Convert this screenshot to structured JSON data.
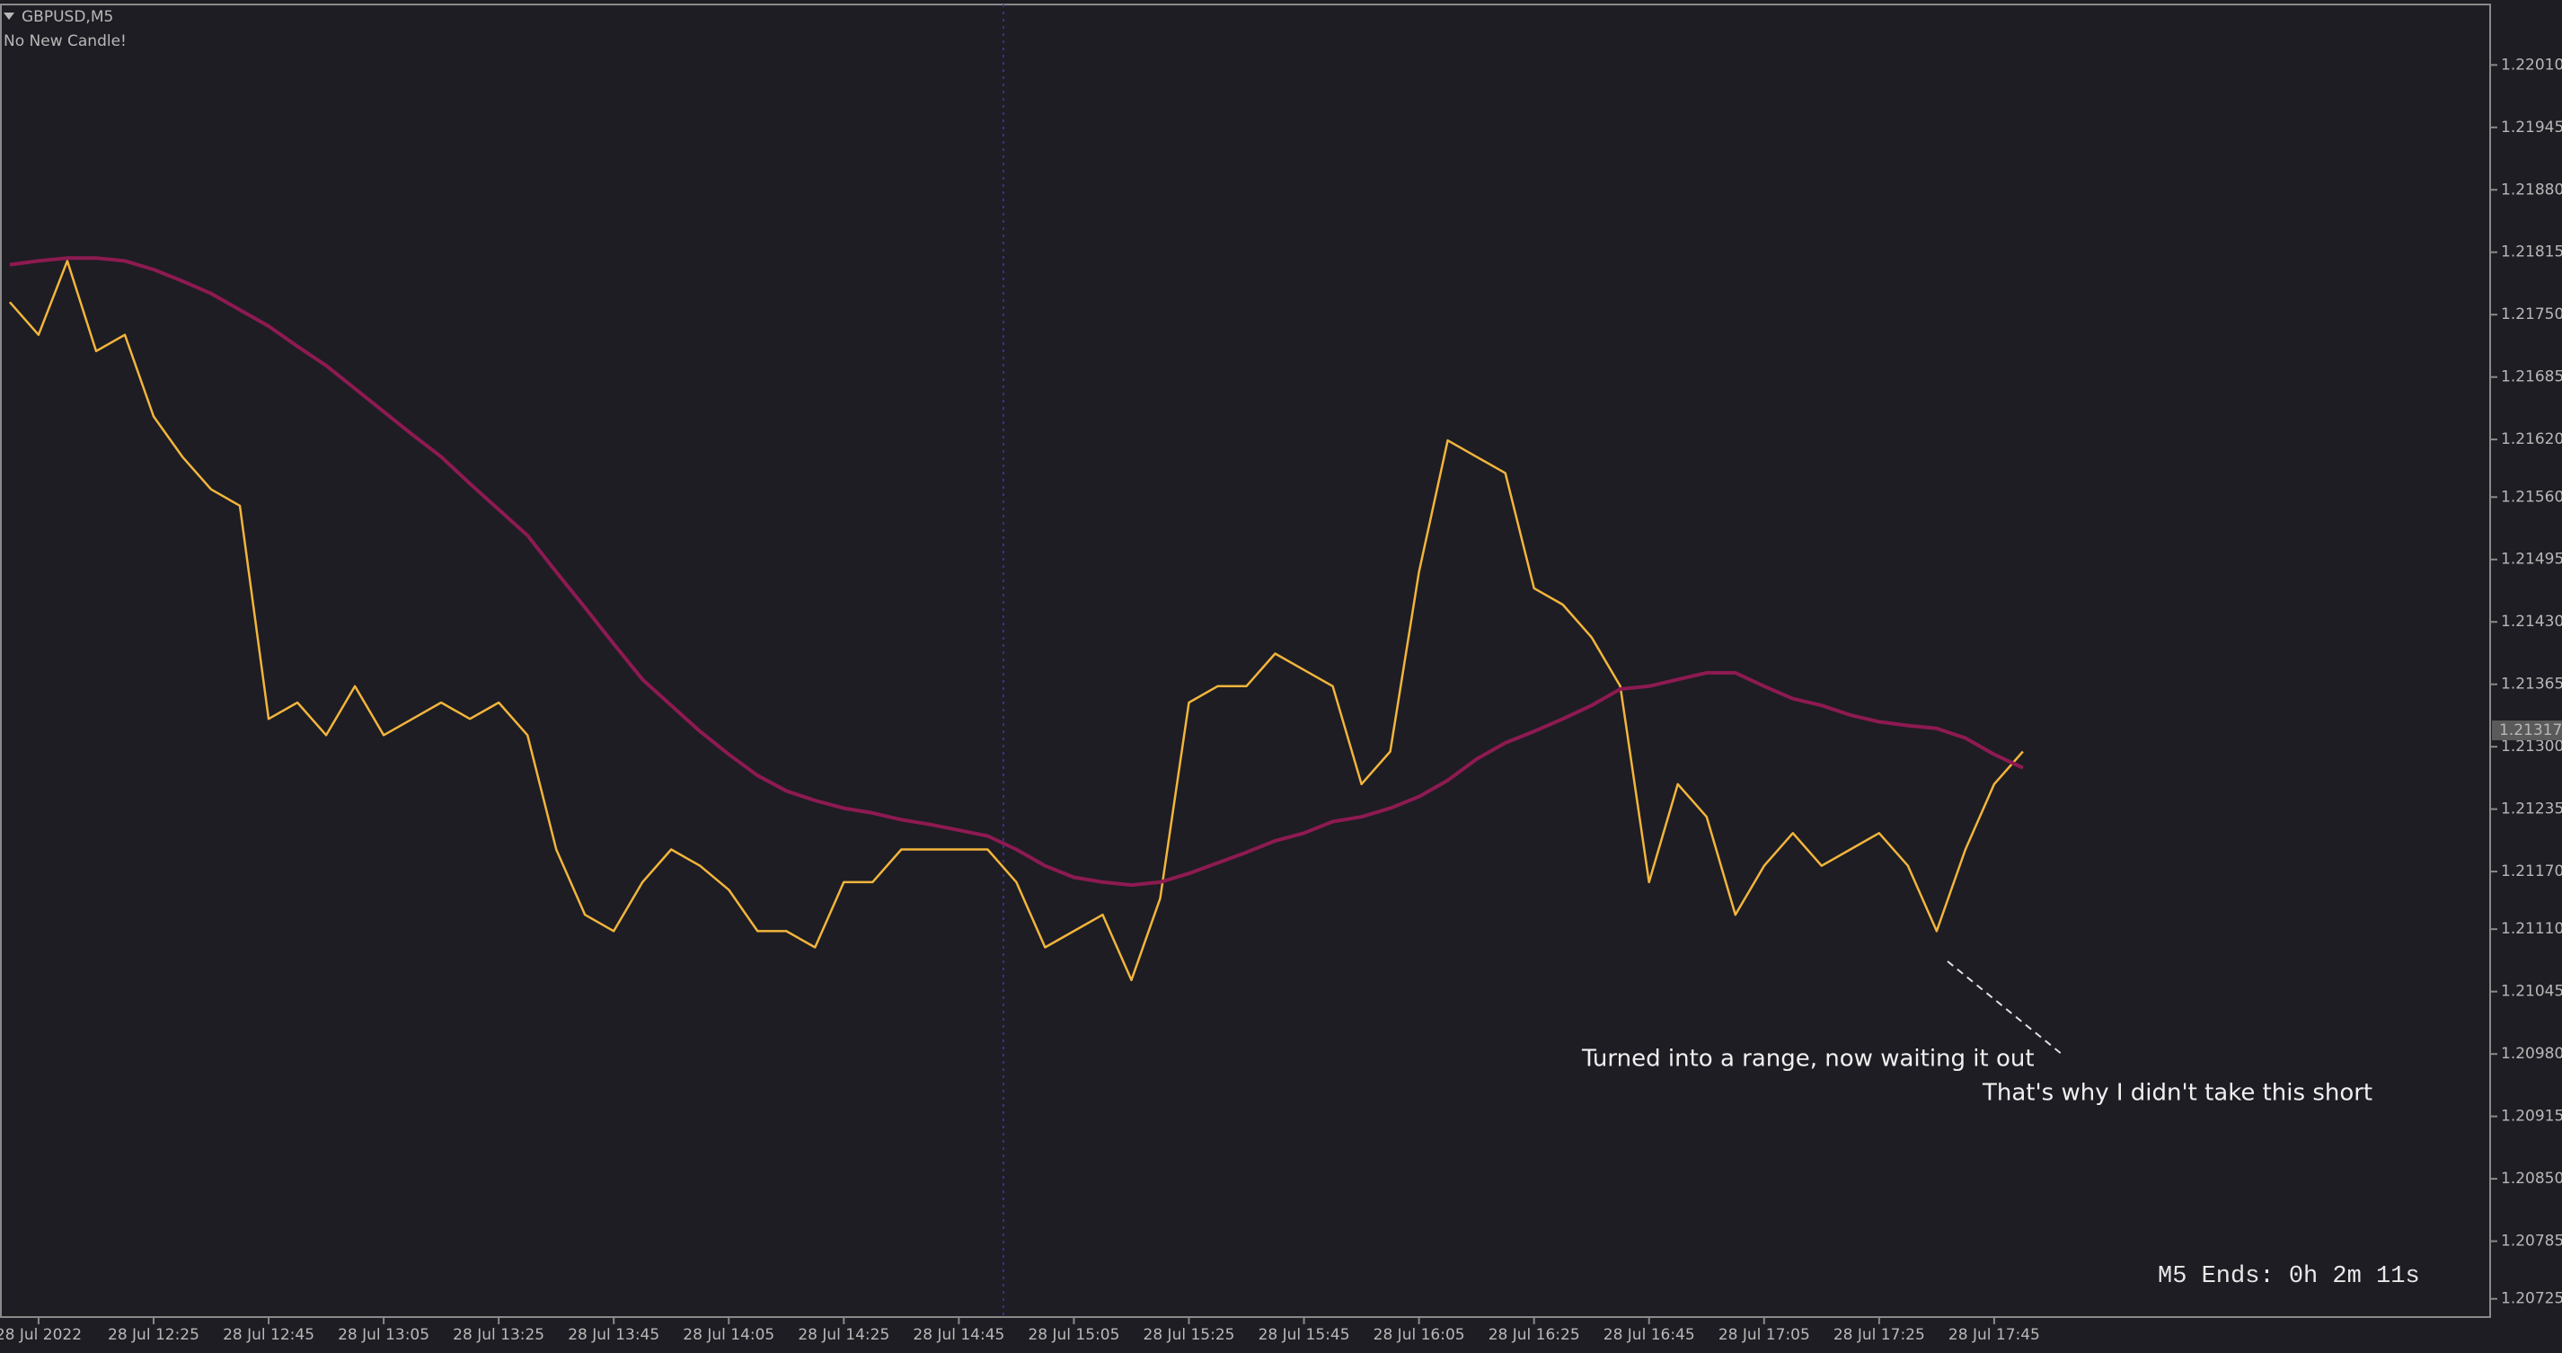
{
  "chart_data": {
    "type": "line",
    "title": "GBPUSD,M5",
    "subtitle": "No New Candle!",
    "annotations": [
      "Turned into a range, now waiting it out",
      "That's why I didn't take this short"
    ],
    "timer": "M5 Ends: 0h 2m 11s",
    "current_price": 1.21317,
    "categories": [
      null,
      "28 Jul 2022",
      null,
      null,
      null,
      "28 Jul 12:25",
      null,
      null,
      null,
      "28 Jul 12:45",
      null,
      null,
      null,
      "28 Jul 13:05",
      null,
      null,
      null,
      "28 Jul 13:25",
      null,
      null,
      null,
      "28 Jul 13:45",
      null,
      null,
      null,
      "28 Jul 14:05",
      null,
      null,
      null,
      "28 Jul 14:25",
      null,
      null,
      null,
      "28 Jul 14:45",
      null,
      null,
      null,
      "28 Jul 15:05",
      null,
      null,
      null,
      "28 Jul 15:25",
      null,
      null,
      null,
      "28 Jul 15:45",
      null,
      null,
      null,
      "28 Jul 16:05",
      null,
      null,
      null,
      "28 Jul 16:25",
      null,
      null,
      null,
      "28 Jul 16:45",
      null,
      null,
      null,
      "28 Jul 17:05",
      null,
      null,
      null,
      "28 Jul 17:25",
      null,
      null,
      null,
      "28 Jul 17:45",
      null
    ],
    "series": [
      {
        "color": "#f2b53c",
        "values": [
          1.21763,
          1.21729,
          1.21806,
          1.21712,
          1.21729,
          1.21644,
          1.21602,
          1.21568,
          1.21551,
          1.21329,
          1.21346,
          1.21312,
          1.21363,
          1.21312,
          1.21329,
          1.21346,
          1.21329,
          1.21346,
          1.21312,
          1.21193,
          1.21125,
          1.21108,
          1.21159,
          1.21193,
          1.21176,
          1.21151,
          1.21108,
          1.21108,
          1.21091,
          1.21159,
          1.21159,
          1.21193,
          1.21193,
          1.21193,
          1.21193,
          1.21159,
          1.21091,
          1.21108,
          1.21125,
          1.21057,
          1.21142,
          1.21346,
          1.21363,
          1.21363,
          1.21397,
          1.2138,
          1.21363,
          1.21261,
          1.21295,
          1.21482,
          1.21619,
          1.21602,
          1.21585,
          1.21465,
          1.21448,
          1.21414,
          1.21363,
          1.21159,
          1.21261,
          1.21227,
          1.21125,
          1.21176,
          1.2121,
          1.21176,
          1.21193,
          1.2121,
          1.21176,
          1.21108,
          1.21193,
          1.21261,
          1.21295
        ]
      },
      {
        "color": "#8e1a52",
        "values": [
          1.21802,
          1.21806,
          1.21809,
          1.21809,
          1.21806,
          1.21797,
          1.21785,
          1.21772,
          1.21755,
          1.21738,
          1.21717,
          1.21697,
          1.21673,
          1.21649,
          1.21625,
          1.21602,
          1.21574,
          1.21547,
          1.2152,
          1.21482,
          1.21445,
          1.21407,
          1.2137,
          1.21343,
          1.21316,
          1.21292,
          1.2127,
          1.21254,
          1.21244,
          1.21236,
          1.21231,
          1.21224,
          1.21219,
          1.21213,
          1.21207,
          1.21193,
          1.21176,
          1.21164,
          1.21159,
          1.21156,
          1.21159,
          1.21168,
          1.21179,
          1.2119,
          1.21202,
          1.2121,
          1.21222,
          1.21227,
          1.21236,
          1.21248,
          1.21265,
          1.21287,
          1.21304,
          1.21316,
          1.21329,
          1.21343,
          1.2136,
          1.21363,
          1.2137,
          1.21377,
          1.21377,
          1.21363,
          1.2135,
          1.21343,
          1.21333,
          1.21326,
          1.21322,
          1.21319,
          1.21309,
          1.21292,
          1.21278
        ]
      }
    ],
    "ylim": [
      1.20706,
      1.22073
    ],
    "yticks": [
      {
        "value": 1.2201,
        "label": "1.22010"
      },
      1.21945,
      {
        "value": 1.2188,
        "label": "1.21880"
      },
      1.21815,
      {
        "value": 1.2175,
        "label": "1.21750"
      },
      1.21685,
      {
        "value": 1.2162,
        "label": "1.21620"
      },
      {
        "value": 1.2156,
        "label": "1.21560"
      },
      1.21495,
      {
        "value": 1.2143,
        "label": "1.21430"
      },
      1.21365,
      {
        "value": 1.213,
        "label": "1.21300"
      },
      1.21235,
      {
        "value": 1.2117,
        "label": "1.21170"
      },
      {
        "value": 1.2111,
        "label": "1.21110"
      },
      1.21045,
      {
        "value": 1.2098,
        "label": "1.20980"
      },
      1.20915,
      {
        "value": 1.2085,
        "label": "1.20850"
      },
      1.20785,
      1.20725
    ],
    "grid": false
  }
}
